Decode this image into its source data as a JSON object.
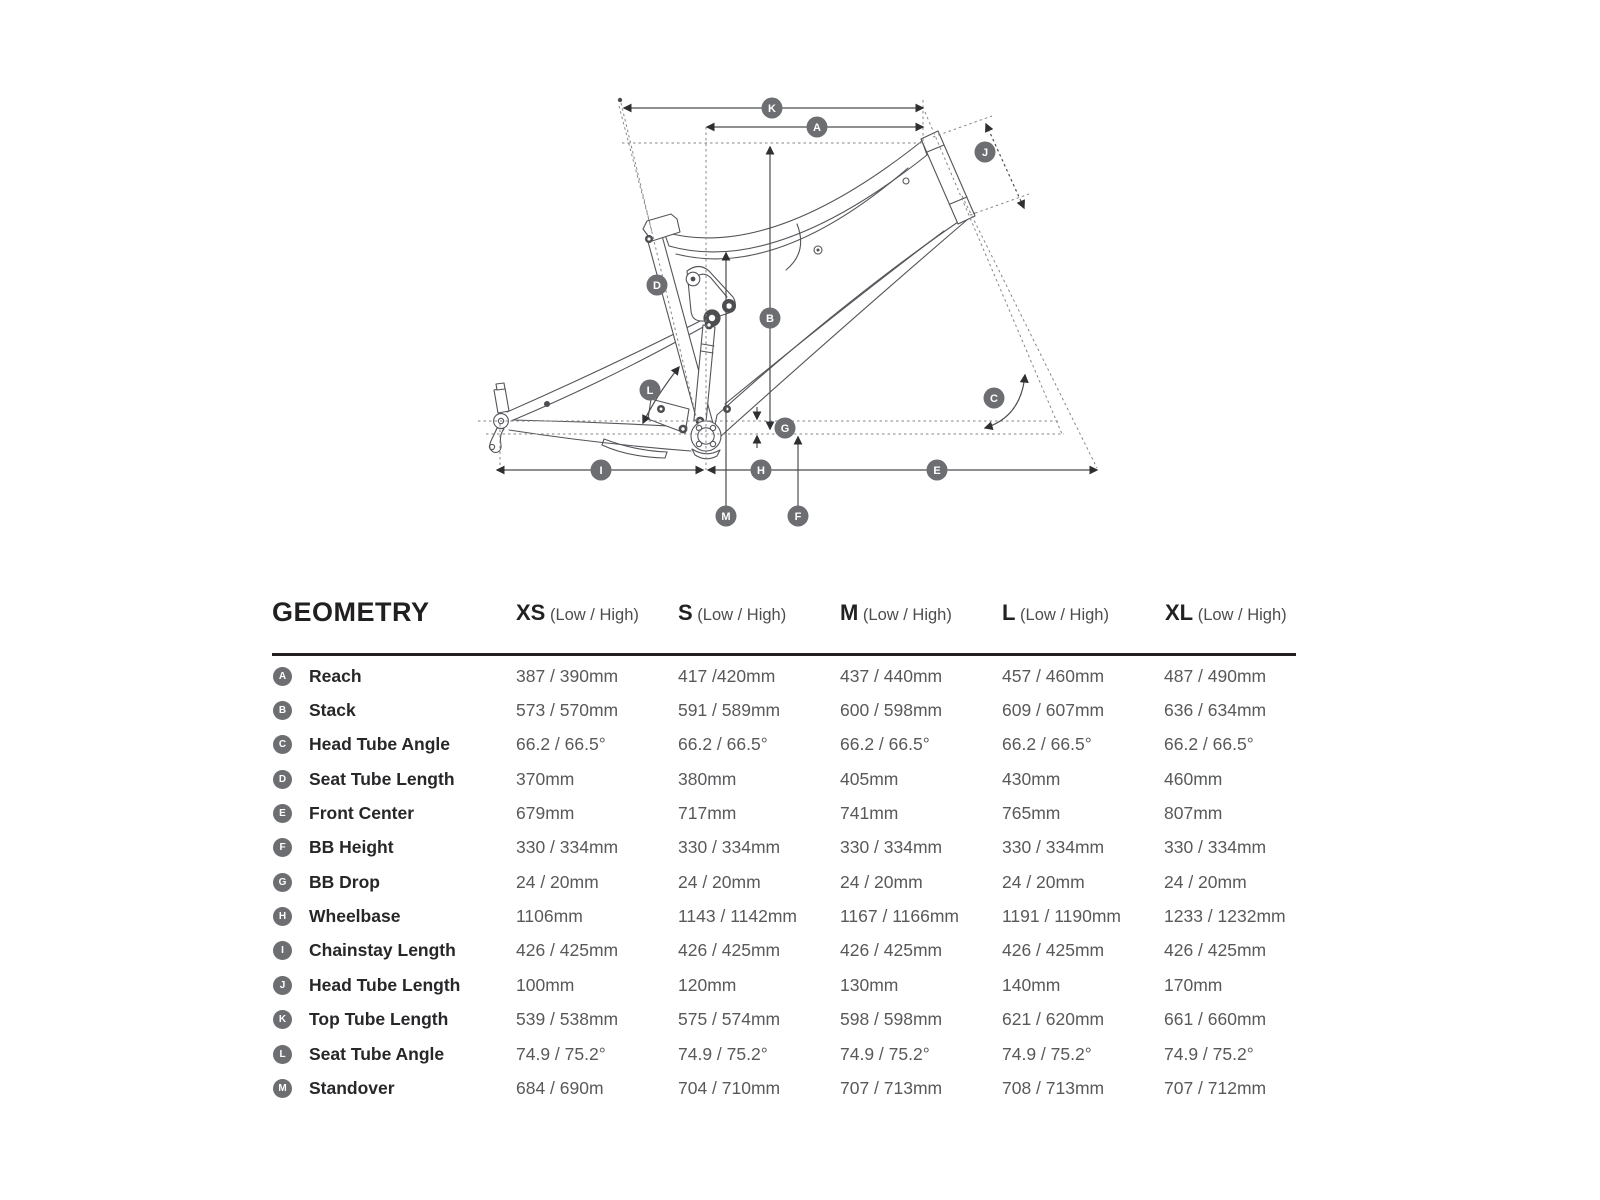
{
  "diagram": {
    "badge_letters": [
      "A",
      "B",
      "C",
      "D",
      "E",
      "F",
      "G",
      "H",
      "I",
      "J",
      "K",
      "L",
      "M"
    ]
  },
  "table": {
    "title": "GEOMETRY",
    "columns": [
      {
        "size": "XS",
        "range_label": "(Low / High)"
      },
      {
        "size": "S",
        "range_label": "(Low / High)"
      },
      {
        "size": "M",
        "range_label": "(Low / High)"
      },
      {
        "size": "L",
        "range_label": "(Low / High)"
      },
      {
        "size": "XL",
        "range_label": "(Low / High)"
      }
    ],
    "rows": [
      {
        "letter": "A",
        "label": "Reach",
        "values": [
          "387 / 390mm",
          "417 /420mm",
          "437 / 440mm",
          "457 / 460mm",
          "487 / 490mm"
        ]
      },
      {
        "letter": "B",
        "label": "Stack",
        "values": [
          "573 / 570mm",
          "591 / 589mm",
          "600 / 598mm",
          "609 / 607mm",
          "636 / 634mm"
        ]
      },
      {
        "letter": "C",
        "label": "Head Tube Angle",
        "values": [
          "66.2 / 66.5°",
          "66.2 / 66.5°",
          "66.2 / 66.5°",
          "66.2 / 66.5°",
          "66.2 / 66.5°"
        ]
      },
      {
        "letter": "D",
        "label": "Seat Tube Length",
        "values": [
          "370mm",
          "380mm",
          "405mm",
          "430mm",
          "460mm"
        ]
      },
      {
        "letter": "E",
        "label": "Front Center",
        "values": [
          "679mm",
          "717mm",
          "741mm",
          "765mm",
          "807mm"
        ]
      },
      {
        "letter": "F",
        "label": "BB Height",
        "values": [
          "330 / 334mm",
          "330 / 334mm",
          "330 / 334mm",
          "330 / 334mm",
          "330 / 334mm"
        ]
      },
      {
        "letter": "G",
        "label": "BB Drop",
        "values": [
          "24 / 20mm",
          "24 / 20mm",
          "24 / 20mm",
          "24 / 20mm",
          "24 / 20mm"
        ]
      },
      {
        "letter": "H",
        "label": "Wheelbase",
        "values": [
          "1106mm",
          "1143 / 1142mm",
          "1167 / 1166mm",
          "1191 / 1190mm",
          "1233 / 1232mm"
        ]
      },
      {
        "letter": "I",
        "label": "Chainstay Length",
        "values": [
          "426 / 425mm",
          "426 / 425mm",
          "426 / 425mm",
          "426 / 425mm",
          "426 / 425mm"
        ]
      },
      {
        "letter": "J",
        "label": "Head Tube Length",
        "values": [
          "100mm",
          "120mm",
          "130mm",
          "140mm",
          "170mm"
        ]
      },
      {
        "letter": "K",
        "label": "Top Tube Length",
        "values": [
          "539 / 538mm",
          "575 / 574mm",
          "598 / 598mm",
          "621 / 620mm",
          "661 / 660mm"
        ]
      },
      {
        "letter": "L",
        "label": "Seat Tube Angle",
        "values": [
          "74.9 / 75.2°",
          "74.9 / 75.2°",
          "74.9 / 75.2°",
          "74.9 / 75.2°",
          "74.9 / 75.2°"
        ]
      },
      {
        "letter": "M",
        "label": "Standover",
        "values": [
          "684 / 690m",
          "704 / 710mm",
          "707 / 713mm",
          "708 / 713mm",
          "707 / 712mm"
        ]
      }
    ]
  },
  "colors": {
    "badge": "#6d6e71",
    "rule": "#231f20",
    "label_text": "#27272a",
    "value_text": "#58595b",
    "frame_line": "#54555a",
    "construction_line": "#85868a",
    "dimension_line": "#4b4c4e"
  }
}
